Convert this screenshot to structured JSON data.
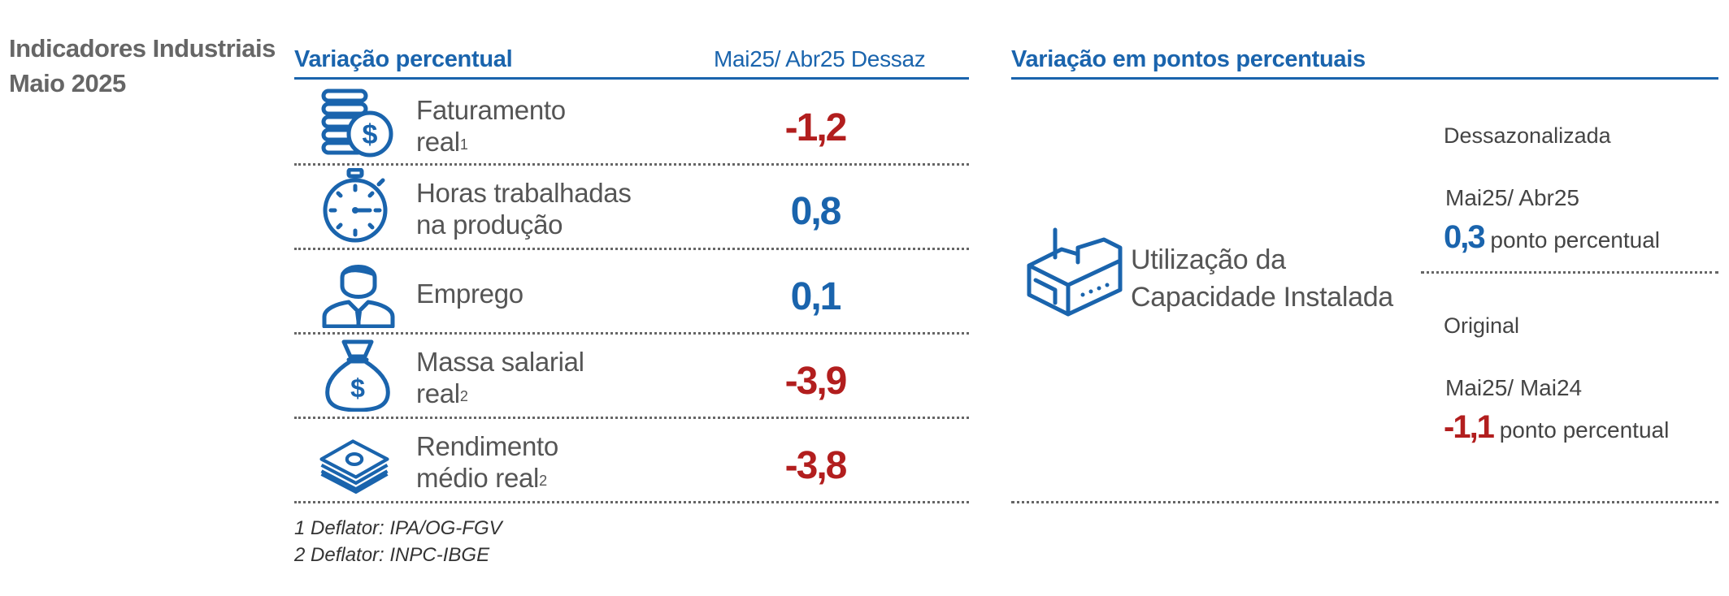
{
  "page_title": {
    "line1": "Indicadores Industriais",
    "line2": "Maio 2025"
  },
  "left_section": {
    "title": "Variação percentual",
    "column_header": "Mai25/ Abr25  Dessaz",
    "rows": [
      {
        "label_line1": "Faturamento",
        "label_line2": "real",
        "sup": "1",
        "value": "-1,2",
        "icon": "coins-dollar-icon",
        "sign": "negative"
      },
      {
        "label_line1": "Horas trabalhadas",
        "label_line2": "na produção",
        "sup": "",
        "value": "0,8",
        "icon": "stopwatch-icon",
        "sign": "positive"
      },
      {
        "label_line1": "Emprego",
        "label_line2": "",
        "sup": "",
        "value": "0,1",
        "icon": "worker-icon",
        "sign": "positive"
      },
      {
        "label_line1": "Massa salarial",
        "label_line2": "real",
        "sup": "2",
        "value": "-3,9",
        "icon": "money-bag-icon",
        "sign": "negative"
      },
      {
        "label_line1": "Rendimento",
        "label_line2": "médio real",
        "sup": "2",
        "value": "-3,8",
        "icon": "banknotes-icon",
        "sign": "negative"
      }
    ],
    "footnotes": [
      "1 Deflator: IPA/OG-FGV",
      "2 Deflator: INPC-IBGE"
    ]
  },
  "right_section": {
    "title": "Variação em pontos percentuais",
    "indicator": {
      "line1": "Utilização da",
      "line2": "Capacidade Instalada",
      "icon": "factory-icon"
    },
    "blocks": [
      {
        "label": "Dessazonalizada",
        "period": "Mai25/ Abr25",
        "value": "0,3",
        "unit": " ponto percentual",
        "sign": "positive"
      },
      {
        "label": "Original",
        "period": "Mai25/ Mai24",
        "value": "-1,1",
        "unit": " ponto percentual",
        "sign": "negative"
      }
    ]
  },
  "colors": {
    "blue": "#1a64ad",
    "red": "#b21e1e",
    "text": "#555555"
  }
}
